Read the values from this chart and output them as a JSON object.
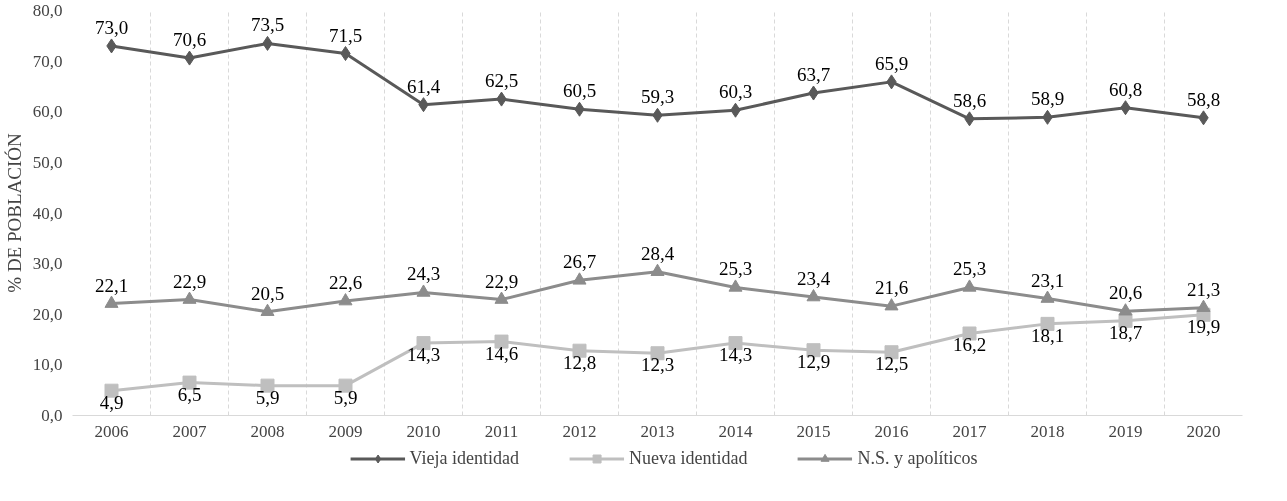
{
  "chart_data": {
    "type": "line",
    "ylabel": "% DE POBLACIÓN",
    "categories": [
      "2006",
      "2007",
      "2008",
      "2009",
      "2010",
      "2011",
      "2012",
      "2013",
      "2014",
      "2015",
      "2016",
      "2017",
      "2018",
      "2019",
      "2020"
    ],
    "series": [
      {
        "name": "Vieja identidad",
        "color": "#595959",
        "marker": "diamond",
        "values": [
          73.0,
          70.6,
          73.5,
          71.5,
          61.4,
          62.5,
          60.5,
          59.3,
          60.3,
          63.7,
          65.9,
          58.6,
          58.9,
          60.8,
          58.8
        ],
        "value_labels": [
          "73,0",
          "70,6",
          "73,5",
          "71,5",
          "61,4",
          "62,5",
          "60,5",
          "59,3",
          "60,3",
          "63,7",
          "65,9",
          "58,6",
          "58,9",
          "60,8",
          "58,8"
        ]
      },
      {
        "name": "Nueva identidad",
        "color": "#bfbfbf",
        "marker": "square",
        "values": [
          4.9,
          6.5,
          5.9,
          5.9,
          14.3,
          14.6,
          12.8,
          12.3,
          14.3,
          12.9,
          12.5,
          16.2,
          18.1,
          18.7,
          19.9
        ],
        "value_labels": [
          "4,9",
          "6,5",
          "5,9",
          "5,9",
          "14,3",
          "14,6",
          "12,8",
          "12,3",
          "14,3",
          "12,9",
          "12,5",
          "16,2",
          "18,1",
          "18,7",
          "19,9"
        ]
      },
      {
        "name": "N.S. y apolíticos",
        "color": "#8c8c8c",
        "marker": "triangle",
        "values": [
          22.1,
          22.9,
          20.5,
          22.6,
          24.3,
          22.9,
          26.7,
          28.4,
          25.3,
          23.4,
          21.6,
          25.3,
          23.1,
          20.6,
          21.3
        ],
        "value_labels": [
          "22,1",
          "22,9",
          "20,5",
          "22,6",
          "24,3",
          "22,9",
          "26,7",
          "28,4",
          "25,3",
          "23,4",
          "21,6",
          "25,3",
          "23,1",
          "20,6",
          "21,3"
        ]
      }
    ],
    "ylim": [
      0,
      80
    ],
    "yticks": [
      {
        "value": 0,
        "label": "0,0"
      },
      {
        "value": 10,
        "label": "10,0"
      },
      {
        "value": 20,
        "label": "20,0"
      },
      {
        "value": 30,
        "label": "30,0"
      },
      {
        "value": 40,
        "label": "40,0"
      },
      {
        "value": 50,
        "label": "50,0"
      },
      {
        "value": 60,
        "label": "60,0"
      },
      {
        "value": 70,
        "label": "70,0"
      },
      {
        "value": 80,
        "label": "80,0"
      }
    ],
    "grid": "x",
    "legend": "bottom",
    "line_style": "solid"
  }
}
